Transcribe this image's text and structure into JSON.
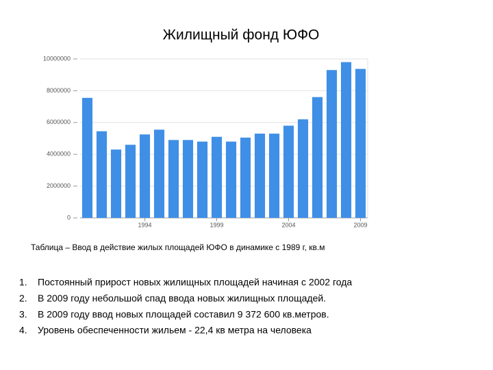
{
  "chart_data": {
    "type": "bar",
    "title": "Жилищный фонд ЮФО",
    "categories": [
      null,
      null,
      null,
      null,
      "1994",
      null,
      null,
      null,
      null,
      "1999",
      null,
      null,
      null,
      null,
      "2004",
      null,
      null,
      null,
      null,
      "2009"
    ],
    "values": [
      7550000,
      5450000,
      4300000,
      4600000,
      5250000,
      5550000,
      4900000,
      4900000,
      4800000,
      5100000,
      4800000,
      5050000,
      5300000,
      5300000,
      5800000,
      6200000,
      7600000,
      9300000,
      9800000,
      9372600
    ],
    "color": "#3f8fe6",
    "ylim": [
      0,
      10000000
    ],
    "yticks": [
      0,
      2000000,
      4000000,
      6000000,
      8000000,
      10000000
    ],
    "grid": true
  },
  "caption": "Таблица – Ввод в действие жилых площадей ЮФО в динамике с 1989 г, кв.м",
  "list": [
    {
      "number": "1.",
      "text": "Постоянный прирост новых жилищных площадей начиная с 2002 года"
    },
    {
      "number": "2.",
      "text": "В 2009 году небольшой спад ввода новых жилищных площадей."
    },
    {
      "number": "3.",
      "text": "В 2009 году ввод новых площадей составил 9 372 600 кв.метров."
    },
    {
      "number": "4.",
      "text": "Уровень обеспеченности жильем  - 22,4 кв метра на человека"
    }
  ]
}
